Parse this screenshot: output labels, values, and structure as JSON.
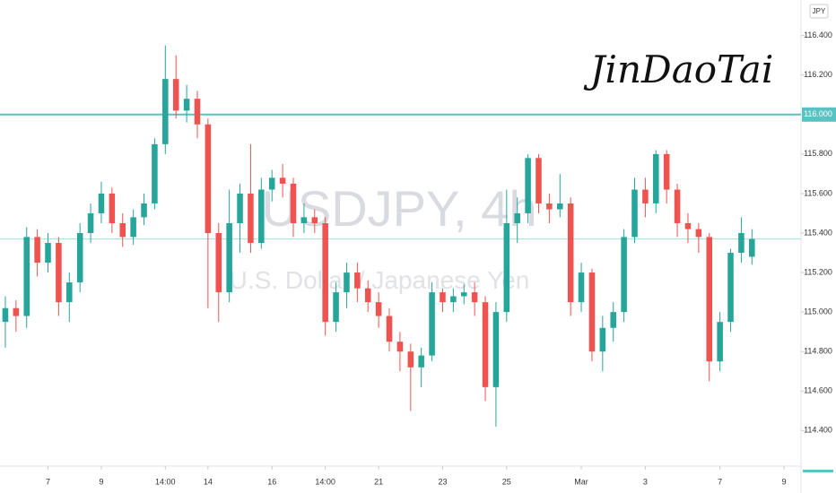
{
  "chart_data": {
    "type": "candlestick",
    "title": "USDJPY, 4h",
    "subtitle": "U.S. Dollar / Japanese Yen",
    "annotation": "JinDaoTai",
    "currency": "JPY",
    "up_color": "#26a69a",
    "down_color": "#ef5350",
    "open": [
      114.95,
      115.02,
      114.98,
      115.38,
      115.25,
      115.35,
      115.05,
      115.15,
      115.4,
      115.5,
      115.6,
      115.45,
      115.38,
      115.48,
      115.55,
      115.85,
      116.18,
      116.02,
      116.08,
      115.95,
      115.4,
      115.1,
      115.45,
      115.6,
      115.35,
      115.62,
      115.68,
      115.65,
      115.45,
      115.48,
      115.45,
      114.95,
      115.1,
      115.2,
      115.12,
      115.05,
      114.98,
      114.85,
      114.8,
      114.72,
      114.78,
      115.1,
      115.05,
      115.08,
      115.1,
      115.05,
      114.62,
      115.0,
      115.45,
      115.5,
      115.78,
      115.55,
      115.52,
      115.55,
      115.05,
      115.2,
      114.8,
      114.92,
      115.0,
      115.38,
      115.62,
      115.55,
      115.8,
      115.62,
      115.45,
      115.42,
      115.38,
      114.75,
      114.95,
      115.3,
      115.28
    ],
    "high": [
      115.08,
      115.06,
      115.43,
      115.42,
      115.4,
      115.38,
      115.2,
      115.45,
      115.55,
      115.66,
      115.63,
      115.5,
      115.52,
      115.6,
      115.88,
      116.35,
      116.3,
      116.15,
      116.12,
      115.98,
      115.45,
      115.62,
      115.65,
      115.85,
      115.68,
      115.72,
      115.75,
      115.68,
      115.55,
      115.52,
      115.48,
      115.15,
      115.25,
      115.25,
      115.16,
      115.1,
      115.02,
      114.9,
      114.84,
      114.82,
      115.15,
      115.12,
      115.12,
      115.14,
      115.15,
      115.08,
      115.05,
      115.62,
      115.58,
      115.8,
      115.8,
      115.6,
      115.7,
      115.58,
      115.25,
      115.22,
      114.98,
      115.05,
      115.42,
      115.68,
      115.68,
      115.82,
      115.82,
      115.65,
      115.5,
      115.45,
      115.4,
      115.0,
      115.32,
      115.48,
      115.42
    ],
    "low": [
      114.82,
      114.9,
      114.92,
      115.18,
      115.2,
      114.98,
      114.95,
      115.1,
      115.35,
      115.45,
      115.4,
      115.33,
      115.34,
      115.44,
      115.52,
      115.8,
      115.98,
      115.96,
      115.88,
      115.02,
      114.95,
      115.05,
      115.3,
      115.3,
      115.32,
      115.56,
      115.58,
      115.38,
      115.4,
      115.4,
      114.88,
      114.9,
      115.02,
      115.05,
      115.0,
      114.92,
      114.8,
      114.7,
      114.5,
      114.62,
      114.75,
      115.0,
      115.0,
      115.04,
      114.98,
      114.55,
      114.42,
      114.95,
      115.35,
      115.45,
      115.5,
      115.45,
      115.48,
      114.98,
      115.0,
      114.75,
      114.7,
      114.85,
      114.95,
      115.35,
      115.48,
      115.5,
      115.55,
      115.38,
      115.35,
      115.3,
      114.65,
      114.7,
      114.9,
      115.25,
      115.24
    ],
    "close": [
      115.02,
      114.98,
      115.38,
      115.25,
      115.35,
      115.05,
      115.15,
      115.4,
      115.5,
      115.6,
      115.45,
      115.38,
      115.48,
      115.55,
      115.85,
      116.18,
      116.02,
      116.08,
      115.95,
      115.4,
      115.1,
      115.45,
      115.6,
      115.35,
      115.62,
      115.68,
      115.65,
      115.45,
      115.48,
      115.45,
      114.95,
      115.1,
      115.2,
      115.12,
      115.05,
      114.98,
      114.85,
      114.8,
      114.72,
      114.78,
      115.1,
      115.05,
      115.08,
      115.1,
      115.05,
      114.62,
      115.0,
      115.45,
      115.5,
      115.78,
      115.55,
      115.52,
      115.55,
      115.05,
      115.2,
      114.8,
      114.92,
      115.0,
      115.38,
      115.62,
      115.55,
      115.8,
      115.62,
      115.45,
      115.42,
      115.38,
      114.75,
      114.95,
      115.3,
      115.4,
      115.37
    ],
    "xlim": [
      -0.5,
      74.6
    ],
    "xticks": [
      {
        "value": 4,
        "label": "7"
      },
      {
        "value": 9,
        "label": "9"
      },
      {
        "value": 15,
        "label": "14:00"
      },
      {
        "value": 19,
        "label": "14"
      },
      {
        "value": 25,
        "label": "16"
      },
      {
        "value": 30,
        "label": "14:00"
      },
      {
        "value": 35,
        "label": "21"
      },
      {
        "value": 41,
        "label": "23"
      },
      {
        "value": 47,
        "label": "25"
      },
      {
        "value": 54,
        "label": "Mar"
      },
      {
        "value": 60,
        "label": "3"
      },
      {
        "value": 67,
        "label": "7"
      },
      {
        "value": 73,
        "label": "9"
      }
    ],
    "ylim": [
      114.22,
      116.58
    ],
    "yticks": [
      {
        "value": 114.4,
        "label": "114.400"
      },
      {
        "value": 114.6,
        "label": "114.600"
      },
      {
        "value": 114.8,
        "label": "114.800"
      },
      {
        "value": 115.0,
        "label": "115.000"
      },
      {
        "value": 115.2,
        "label": "115.200"
      },
      {
        "value": 115.4,
        "label": "115.400"
      },
      {
        "value": 115.6,
        "label": "115.600"
      },
      {
        "value": 115.8,
        "label": "115.800"
      },
      {
        "value": 116.2,
        "label": "116.200"
      },
      {
        "value": 116.4,
        "label": "116.400"
      }
    ],
    "hline": {
      "value": 116.0,
      "label": "116.000",
      "color": "#5bc2c4"
    }
  }
}
